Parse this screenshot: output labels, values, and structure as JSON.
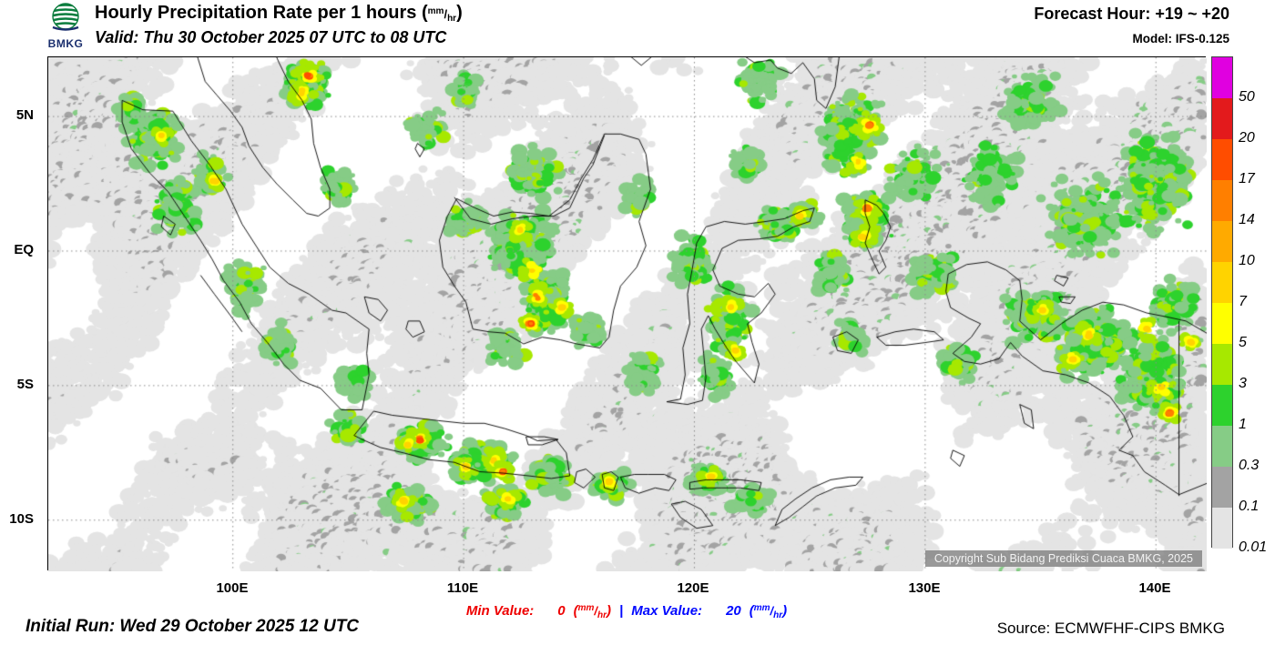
{
  "header": {
    "logo_text": "BMKG",
    "title_prefix": "Hourly Precipitation Rate per 1 hours ",
    "unit_open": "(",
    "unit_numerator": "mm",
    "unit_separator": "/",
    "unit_denominator": "hr",
    "unit_close": ")",
    "title_suffix": "",
    "subtitle": "Valid: Thu 30 October 2025 07 UTC to 08 UTC",
    "forecast_hour": "Forecast Hour: +19 ~ +20",
    "model": "Model: IFS-0.125"
  },
  "map": {
    "lat_labels": [
      "5N",
      "EQ",
      "5S",
      "10S"
    ],
    "lon_labels": [
      "100E",
      "110E",
      "120E",
      "130E",
      "140E"
    ],
    "copyright": "Copyright Sub Bidang Prediksi Cuaca BMKG, 2025"
  },
  "legend": {
    "labels": [
      "50",
      "20",
      "17",
      "14",
      "10",
      "7",
      "5",
      "3",
      "1",
      "0.3",
      "0.1",
      "0.01"
    ],
    "colors": [
      "#e000e0",
      "#e31a1c",
      "#ff4d00",
      "#ff7f00",
      "#ffaa00",
      "#ffd300",
      "#ffff00",
      "#a7e800",
      "#2dd22d",
      "#86cc86",
      "#a3a3a3",
      "#e4e4e4"
    ]
  },
  "footer": {
    "initial_run": "Initial Run: Wed 29 October 2025 12 UTC",
    "min_label": "Min Value:",
    "min_value": "0",
    "separator": "|",
    "max_label": "Max Value:",
    "max_value": "20",
    "source": "Source: ECMWFHF-CIPS BMKG",
    "min_color": "#ee0000",
    "max_color": "#0008ff"
  }
}
